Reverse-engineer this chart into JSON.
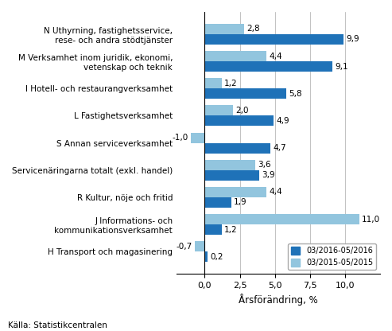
{
  "categories": [
    "N Uthyrning, fastighetsservice,\nrese- och andra stödtjänster",
    "M Verksamhet inom juridik, ekonomi,\nvetenskap och teknik",
    "I Hotell- och restaurangverksamhet",
    "L Fastighetsverksamhet",
    "S Annan serviceverksamhet",
    "Servicenäringarna totalt (exkl. handel)",
    "R Kultur, nöje och fritid",
    "J Informations- och\nkommunikationsverksamhet",
    "H Transport och magasinering"
  ],
  "series1": [
    9.9,
    9.1,
    5.8,
    4.9,
    4.7,
    3.9,
    1.9,
    1.2,
    0.2
  ],
  "series2": [
    2.8,
    4.4,
    1.2,
    2.0,
    -1.0,
    3.6,
    4.4,
    11.0,
    -0.7
  ],
  "color1": "#1F72B8",
  "color2": "#92C5DE",
  "legend1": "03/2016-05/2016",
  "legend2": "03/2015-05/2015",
  "xlabel": "Årsförändring, %",
  "source": "Källa: Statistikcentralen",
  "xlim": [
    -2.0,
    12.5
  ],
  "xticks": [
    0.0,
    2.5,
    5.0,
    7.5,
    10.0
  ],
  "xticklabels": [
    "0,0",
    "2,5",
    "5,0",
    "7,5",
    "10,0"
  ]
}
